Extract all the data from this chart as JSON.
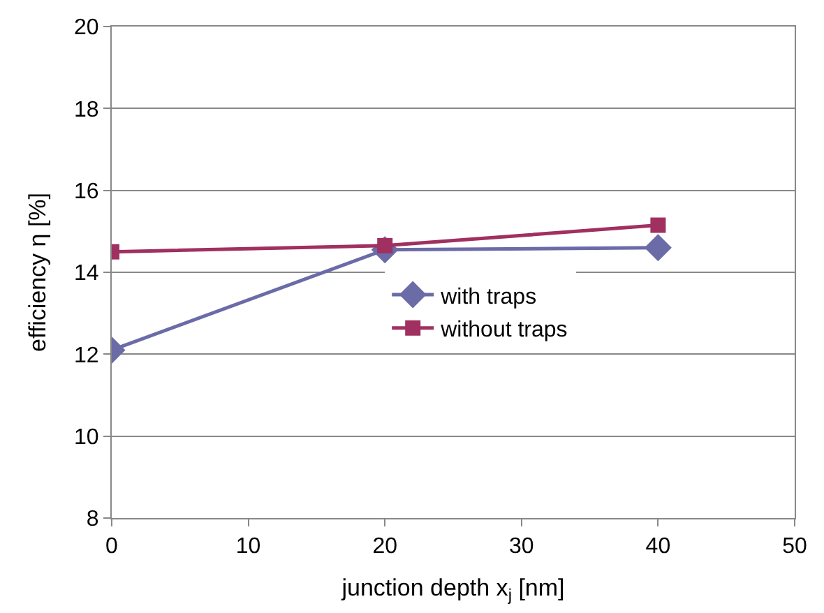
{
  "chart_data": {
    "type": "line",
    "xlabel": "junction depth x$_{j}$ [nm]",
    "ylabel": "efficiency η [%]",
    "x": [
      0,
      20,
      40
    ],
    "series": [
      {
        "name": "with traps",
        "color": "#6b6ba8",
        "values": [
          12.1,
          14.55,
          14.6
        ],
        "marker": "diamond"
      },
      {
        "name": "without traps",
        "color": "#a0305f",
        "values": [
          14.5,
          14.65,
          15.15
        ],
        "marker": "square"
      }
    ],
    "xlim": [
      0,
      50
    ],
    "xticks": [
      0,
      10,
      20,
      30,
      40,
      50
    ],
    "ylim": [
      8,
      20
    ],
    "yticks": [
      8,
      10,
      12,
      14,
      16,
      18,
      20
    ],
    "grid": "y",
    "legend": "center",
    "line_style": "solid"
  }
}
